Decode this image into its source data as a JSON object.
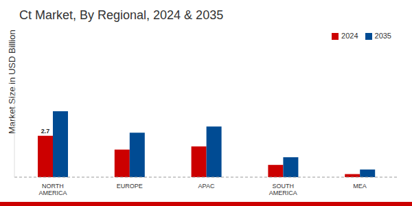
{
  "chart_data": {
    "type": "bar",
    "title": "Ct Market, By Regional, 2024 & 2035",
    "y_label": "Market Size in USD Billion",
    "categories": [
      "NORTH AMERICA",
      "EUROPE",
      "APAC",
      "SOUTH AMERICA",
      "MEA"
    ],
    "series": [
      {
        "name": "2024",
        "color": "#cc0000",
        "values": [
          2.7,
          1.8,
          2.0,
          0.8,
          0.2
        ],
        "value_labels": [
          "2.7",
          null,
          null,
          null,
          null
        ]
      },
      {
        "name": "2035",
        "color": "#004b93",
        "values": [
          4.3,
          2.9,
          3.3,
          1.3,
          0.5
        ]
      }
    ],
    "ylim": [
      0,
      6
    ],
    "grid": false,
    "legend": "top-right",
    "tick_labels": "x"
  }
}
